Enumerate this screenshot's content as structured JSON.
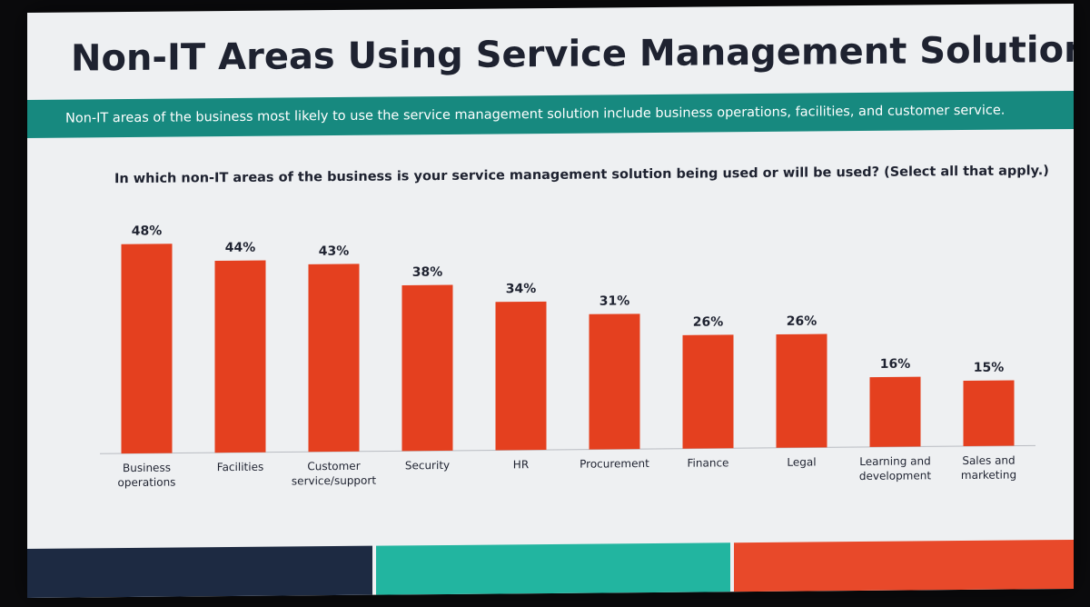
{
  "colors": {
    "bar": "#e4401f",
    "banner": "#17897f",
    "text": "#1e2230",
    "footer": [
      "#1d2a42",
      "#22b5a0",
      "#e8492a"
    ]
  },
  "slide": {
    "title": "Non-IT Areas Using Service Management Solutions",
    "subtitle": "Non-IT areas of the business most likely to use the service management solution include business operations, facilities, and customer service."
  },
  "chart_data": {
    "type": "bar",
    "title": "In which non-IT areas of the business is your service management solution being used or will be used? (Select all that apply.)",
    "categories": [
      [
        "Business",
        "operations"
      ],
      [
        "Facilities"
      ],
      [
        "Customer",
        "service/support"
      ],
      [
        "Security"
      ],
      [
        "HR"
      ],
      [
        "Procurement"
      ],
      [
        "Finance"
      ],
      [
        "Legal"
      ],
      [
        "Learning and",
        "development"
      ],
      [
        "Sales and",
        "marketing"
      ]
    ],
    "values": [
      48,
      44,
      43,
      38,
      34,
      31,
      26,
      26,
      16,
      15
    ],
    "value_labels": [
      "48%",
      "44%",
      "43%",
      "38%",
      "34%",
      "31%",
      "26%",
      "26%",
      "16%",
      "15%"
    ],
    "unit": "%",
    "ylim": [
      0,
      50
    ],
    "grid": false,
    "legend": "none"
  }
}
